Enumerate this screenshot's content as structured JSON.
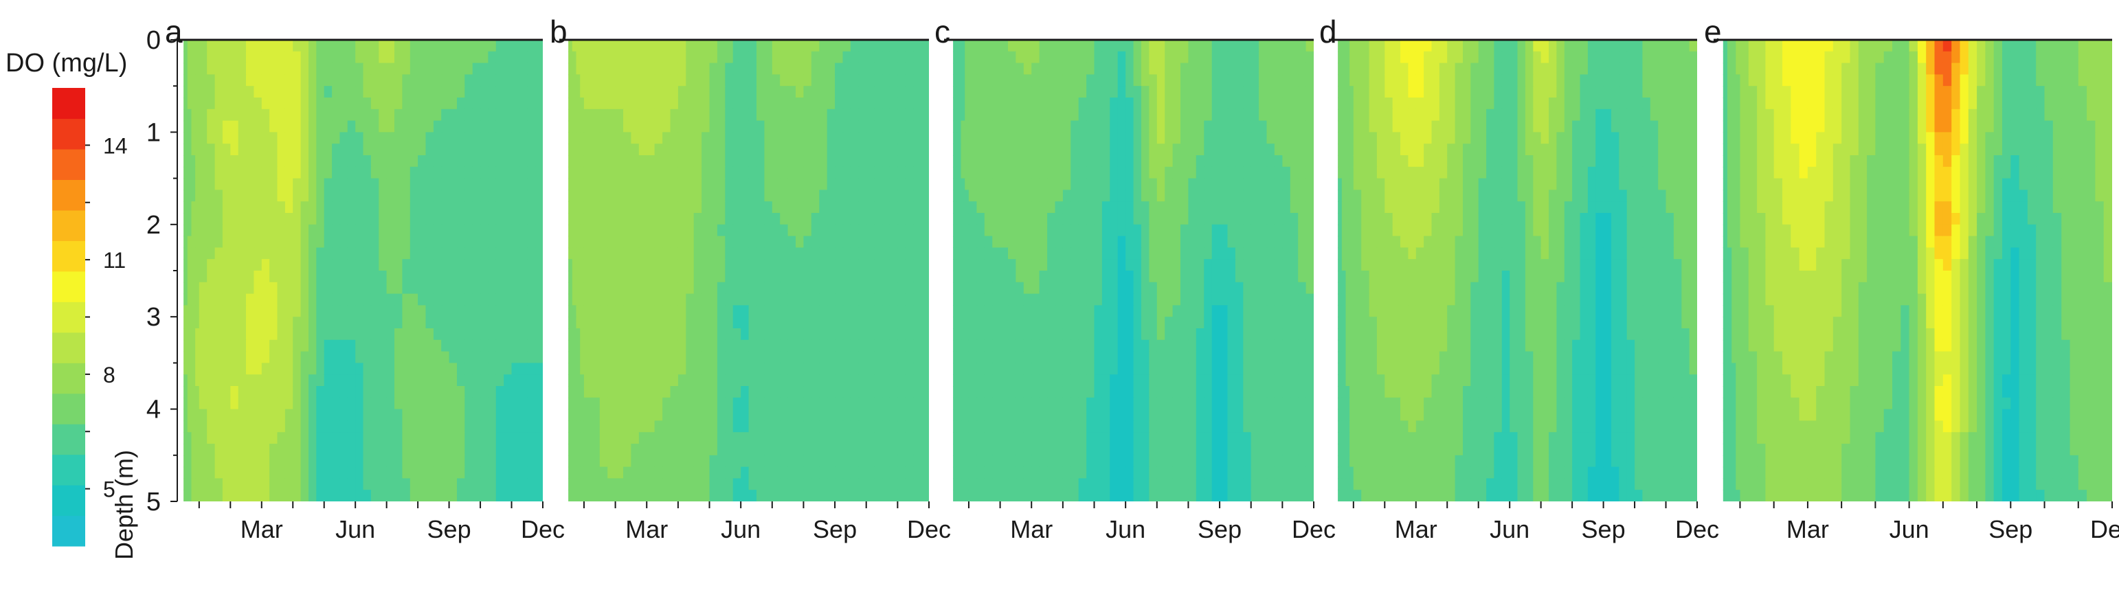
{
  "chart_data": {
    "type": "heatmap",
    "colorbar": {
      "label": "DO (mg/L)",
      "ticks": [
        5,
        8,
        11,
        14
      ],
      "min": 3.5,
      "max": 15.5,
      "colors": [
        "#1fbfd0",
        "#1ac4c2",
        "#2ecbb0",
        "#52cf90",
        "#78d66c",
        "#98dc56",
        "#b8e448",
        "#d8ee3a",
        "#f6f628",
        "#fcd61e",
        "#fbb81a",
        "#fa9416",
        "#f7681a",
        "#f03c18",
        "#e81a14"
      ]
    },
    "ylabel": "Depth (m)",
    "yticks": [
      0,
      1,
      2,
      3,
      4,
      5
    ],
    "ylim": [
      0,
      5
    ],
    "xticks": [
      "Mar",
      "Jun",
      "Sep",
      "Dec"
    ],
    "xlim_months": [
      0.3,
      12
    ],
    "panels": [
      {
        "label": "a",
        "depths": [
          0,
          0.5,
          1,
          1.5,
          2,
          2.5,
          3,
          3.5,
          4,
          4.5,
          5
        ],
        "months": [
          0.5,
          1,
          2,
          3,
          4,
          5,
          6,
          7,
          8,
          9,
          10,
          11,
          12
        ],
        "values": [
          [
            7.4,
            8.2,
            8.8,
            9.6,
            9.4,
            6.8,
            7.6,
            8.8,
            7.2,
            7.0,
            6.8,
            6.6,
            6.4
          ],
          [
            7.3,
            8.0,
            8.6,
            9.4,
            9.6,
            6.6,
            7.2,
            8.2,
            7.0,
            6.8,
            6.6,
            6.5,
            6.3
          ],
          [
            7.2,
            7.8,
            9.4,
            8.6,
            9.8,
            6.8,
            6.6,
            7.6,
            6.8,
            6.6,
            6.5,
            6.4,
            6.2
          ],
          [
            7.1,
            7.6,
            8.8,
            8.8,
            9.4,
            6.8,
            6.2,
            7.0,
            6.6,
            6.4,
            6.4,
            6.3,
            6.1
          ],
          [
            7.2,
            7.8,
            8.4,
            9.0,
            9.0,
            6.6,
            6.0,
            7.0,
            6.6,
            6.2,
            6.2,
            6.2,
            6.0
          ],
          [
            7.3,
            8.2,
            8.6,
            9.2,
            8.8,
            6.2,
            6.0,
            6.8,
            6.6,
            6.2,
            6.0,
            6.0,
            6.0
          ],
          [
            7.4,
            8.4,
            8.8,
            9.6,
            8.6,
            6.0,
            6.0,
            6.6,
            6.8,
            6.4,
            6.0,
            6.0,
            5.9
          ],
          [
            7.4,
            8.6,
            9.0,
            9.2,
            8.4,
            5.8,
            5.8,
            6.6,
            7.0,
            6.8,
            6.0,
            5.9,
            5.9
          ],
          [
            7.2,
            8.2,
            9.2,
            8.8,
            8.2,
            5.4,
            5.6,
            6.4,
            7.2,
            7.4,
            6.0,
            5.8,
            5.8
          ],
          [
            7.0,
            8.0,
            8.6,
            8.4,
            8.0,
            5.6,
            5.8,
            6.4,
            7.0,
            7.2,
            6.0,
            5.8,
            5.7
          ],
          [
            7.0,
            7.8,
            8.4,
            8.4,
            7.8,
            5.2,
            5.6,
            6.2,
            6.8,
            7.0,
            6.0,
            5.8,
            5.6
          ]
        ]
      },
      {
        "label": "b",
        "depths": [
          0,
          0.5,
          1,
          1.5,
          2,
          2.5,
          3,
          3.5,
          4,
          4.5,
          5
        ],
        "months": [
          0.5,
          1,
          2,
          3,
          4,
          5,
          6,
          7,
          8,
          9,
          10,
          11,
          12
        ],
        "values": [
          [
            8.2,
            8.6,
            8.6,
            9.0,
            8.6,
            7.8,
            6.2,
            7.6,
            8.0,
            6.8,
            6.6,
            6.6,
            6.6
          ],
          [
            8.0,
            8.4,
            8.4,
            8.6,
            8.4,
            7.6,
            6.0,
            7.4,
            7.6,
            6.6,
            6.6,
            6.6,
            6.6
          ],
          [
            7.8,
            8.2,
            8.2,
            8.4,
            8.2,
            7.4,
            5.8,
            7.2,
            7.2,
            6.6,
            6.6,
            6.6,
            6.6
          ],
          [
            7.6,
            8.0,
            8.2,
            8.2,
            8.0,
            7.4,
            6.2,
            7.0,
            7.0,
            6.6,
            6.6,
            6.6,
            6.6
          ],
          [
            7.6,
            7.8,
            8.0,
            8.0,
            7.8,
            7.2,
            5.8,
            6.6,
            6.8,
            6.4,
            6.6,
            6.6,
            6.6
          ],
          [
            7.4,
            7.8,
            7.8,
            7.8,
            7.8,
            7.2,
            6.2,
            6.6,
            6.6,
            6.4,
            6.6,
            6.6,
            6.6
          ],
          [
            7.4,
            7.6,
            7.8,
            7.8,
            7.6,
            7.0,
            5.6,
            6.4,
            6.6,
            6.4,
            6.6,
            6.6,
            6.6
          ],
          [
            7.2,
            7.6,
            7.8,
            7.6,
            7.6,
            7.0,
            6.0,
            6.4,
            6.6,
            6.4,
            6.6,
            6.6,
            6.6
          ],
          [
            7.2,
            7.4,
            7.6,
            7.6,
            7.4,
            7.0,
            5.6,
            6.4,
            6.6,
            6.4,
            6.6,
            6.6,
            6.6
          ],
          [
            7.0,
            7.4,
            7.6,
            7.4,
            7.4,
            6.8,
            6.0,
            6.2,
            6.6,
            6.4,
            6.6,
            6.6,
            6.6
          ],
          [
            7.0,
            7.2,
            7.4,
            7.4,
            7.2,
            6.8,
            5.6,
            6.2,
            6.6,
            6.4,
            6.6,
            6.6,
            6.6
          ]
        ]
      },
      {
        "label": "c",
        "depths": [
          0,
          0.5,
          1,
          1.5,
          2,
          2.5,
          3,
          3.5,
          4,
          4.5,
          5
        ],
        "months": [
          0.5,
          1,
          2,
          3,
          4,
          5,
          6,
          7,
          8,
          9,
          10,
          11,
          12
        ],
        "values": [
          [
            6.2,
            6.8,
            7.4,
            7.8,
            7.0,
            6.8,
            5.8,
            8.8,
            7.4,
            6.6,
            6.6,
            7.2,
            7.6
          ],
          [
            6.4,
            6.8,
            7.2,
            7.4,
            7.0,
            6.6,
            5.6,
            8.6,
            7.2,
            6.6,
            6.6,
            7.0,
            7.4
          ],
          [
            6.6,
            6.8,
            7.0,
            7.2,
            6.8,
            6.4,
            5.2,
            8.6,
            7.0,
            6.4,
            6.6,
            6.8,
            7.2
          ],
          [
            6.6,
            6.8,
            7.0,
            7.0,
            6.8,
            6.4,
            5.4,
            7.8,
            6.8,
            6.2,
            6.6,
            6.6,
            7.0
          ],
          [
            6.4,
            6.6,
            6.8,
            6.8,
            6.6,
            6.2,
            5.0,
            7.4,
            6.6,
            5.8,
            6.4,
            6.6,
            6.8
          ],
          [
            6.4,
            6.6,
            6.6,
            6.8,
            6.6,
            6.2,
            4.8,
            7.0,
            6.6,
            5.4,
            6.4,
            6.6,
            6.8
          ],
          [
            6.2,
            6.6,
            6.6,
            6.6,
            6.4,
            6.0,
            4.6,
            6.8,
            6.6,
            4.8,
            6.2,
            6.6,
            6.6
          ],
          [
            6.2,
            6.4,
            6.6,
            6.6,
            6.4,
            6.0,
            4.6,
            6.6,
            6.4,
            4.8,
            6.2,
            6.6,
            6.6
          ],
          [
            6.0,
            6.4,
            6.4,
            6.4,
            6.2,
            5.8,
            4.6,
            6.6,
            6.2,
            4.6,
            6.2,
            6.6,
            6.6
          ],
          [
            6.0,
            6.4,
            6.4,
            6.4,
            6.2,
            5.8,
            4.6,
            6.4,
            6.2,
            4.6,
            6.0,
            6.4,
            6.6
          ],
          [
            6.0,
            6.2,
            6.4,
            6.4,
            6.2,
            5.6,
            4.6,
            6.4,
            6.2,
            4.6,
            6.0,
            6.4,
            6.6
          ]
        ]
      },
      {
        "label": "d",
        "depths": [
          0,
          0.5,
          1,
          1.5,
          2,
          2.5,
          3,
          3.5,
          4,
          4.5,
          5
        ],
        "months": [
          0.5,
          1,
          2,
          3,
          4,
          5,
          6,
          7,
          8,
          9,
          10,
          11,
          12
        ],
        "values": [
          [
            6.8,
            7.6,
            9.2,
            10.6,
            9.0,
            7.4,
            6.2,
            9.6,
            7.2,
            6.2,
            6.6,
            7.2,
            7.6
          ],
          [
            6.8,
            7.6,
            9.0,
            10.2,
            8.8,
            7.2,
            6.0,
            9.2,
            7.0,
            6.0,
            6.6,
            7.0,
            7.4
          ],
          [
            6.8,
            7.4,
            8.8,
            9.6,
            8.6,
            7.0,
            6.0,
            8.6,
            6.8,
            5.6,
            6.4,
            6.8,
            7.2
          ],
          [
            6.6,
            7.4,
            8.4,
            9.0,
            8.2,
            6.8,
            6.0,
            8.2,
            6.6,
            5.4,
            6.4,
            6.8,
            7.0
          ],
          [
            6.6,
            7.2,
            8.2,
            8.6,
            8.0,
            6.8,
            5.8,
            7.8,
            6.4,
            4.8,
            6.2,
            6.6,
            7.0
          ],
          [
            6.4,
            7.2,
            8.0,
            8.2,
            7.8,
            6.6,
            5.8,
            7.6,
            6.2,
            4.6,
            6.2,
            6.6,
            6.8
          ],
          [
            6.4,
            7.0,
            7.8,
            8.0,
            7.6,
            6.4,
            5.8,
            7.4,
            6.2,
            4.6,
            6.2,
            6.6,
            6.8
          ],
          [
            6.4,
            7.0,
            7.6,
            7.8,
            7.4,
            6.4,
            5.8,
            7.2,
            6.0,
            4.6,
            6.0,
            6.4,
            6.8
          ],
          [
            6.2,
            6.8,
            7.4,
            7.6,
            7.2,
            6.2,
            5.8,
            7.2,
            6.0,
            4.6,
            6.0,
            6.4,
            6.6
          ],
          [
            6.2,
            6.8,
            7.2,
            7.4,
            7.0,
            6.2,
            5.6,
            7.0,
            6.0,
            4.6,
            6.0,
            6.4,
            6.6
          ],
          [
            6.2,
            6.6,
            7.2,
            7.2,
            7.0,
            6.0,
            5.6,
            7.0,
            5.8,
            4.6,
            5.8,
            6.2,
            6.6
          ]
        ]
      },
      {
        "label": "e",
        "depths": [
          0,
          0.5,
          1,
          1.5,
          2,
          2.5,
          3,
          3.5,
          4,
          4.5,
          5
        ],
        "months": [
          0.5,
          1,
          2,
          3,
          4,
          5,
          6,
          7,
          8,
          9,
          10,
          11,
          12
        ],
        "values": [
          [
            6.4,
            7.8,
            9.6,
            10.8,
            9.4,
            7.6,
            7.4,
            15.0,
            8.8,
            6.4,
            6.8,
            7.6,
            8.2
          ],
          [
            6.4,
            7.6,
            9.4,
            10.8,
            9.2,
            7.4,
            7.2,
            13.6,
            8.6,
            6.2,
            6.8,
            7.4,
            8.0
          ],
          [
            6.4,
            7.6,
            9.2,
            10.4,
            9.0,
            7.4,
            7.0,
            13.0,
            8.4,
            6.0,
            6.6,
            7.2,
            7.8
          ],
          [
            6.4,
            7.4,
            9.0,
            10.0,
            8.8,
            7.2,
            7.0,
            11.6,
            8.0,
            5.6,
            6.6,
            7.2,
            7.8
          ],
          [
            6.4,
            7.4,
            8.8,
            9.6,
            8.6,
            7.2,
            6.8,
            12.6,
            7.8,
            5.0,
            6.4,
            7.0,
            7.6
          ],
          [
            6.2,
            7.2,
            8.6,
            9.2,
            8.4,
            7.0,
            6.8,
            11.0,
            7.6,
            4.8,
            6.4,
            7.0,
            7.6
          ],
          [
            6.2,
            7.2,
            8.4,
            9.0,
            8.2,
            7.0,
            6.6,
            10.8,
            7.4,
            4.8,
            6.4,
            7.0,
            7.4
          ],
          [
            6.2,
            7.0,
            8.2,
            8.6,
            8.0,
            6.8,
            6.6,
            10.2,
            7.2,
            4.8,
            6.2,
            6.8,
            7.4
          ],
          [
            6.0,
            7.0,
            8.0,
            8.4,
            7.8,
            6.8,
            6.6,
            10.6,
            7.2,
            4.8,
            6.2,
            6.8,
            7.2
          ],
          [
            6.0,
            6.8,
            7.8,
            8.2,
            7.6,
            6.6,
            6.4,
            9.8,
            7.0,
            4.8,
            6.2,
            6.8,
            7.2
          ],
          [
            6.0,
            6.8,
            7.6,
            8.0,
            7.4,
            6.6,
            6.4,
            9.6,
            7.0,
            4.8,
            6.0,
            6.6,
            7.2
          ]
        ]
      }
    ]
  }
}
